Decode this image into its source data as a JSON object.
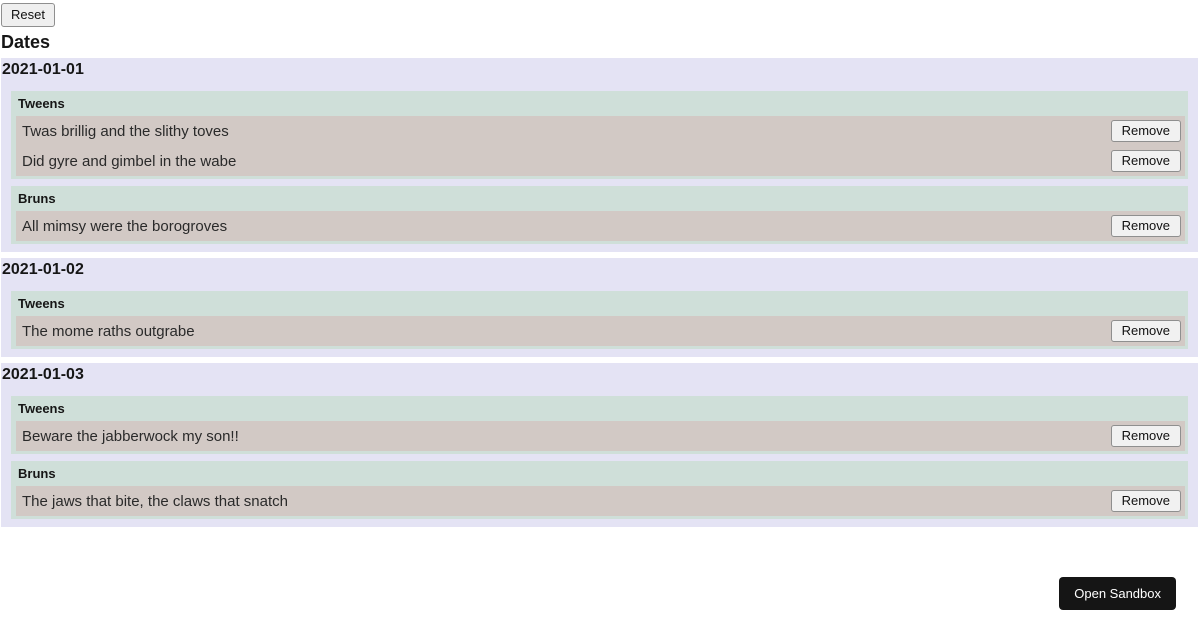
{
  "toolbar": {
    "reset_label": "Reset"
  },
  "header": {
    "title": "Dates"
  },
  "labels": {
    "remove": "Remove"
  },
  "dates": [
    {
      "date": "2021-01-01",
      "groups": [
        {
          "name": "Tweens",
          "items": [
            "Twas brillig and the slithy toves",
            "Did gyre and gimbel in the wabe"
          ]
        },
        {
          "name": "Bruns",
          "items": [
            "All mimsy were the borogroves"
          ]
        }
      ]
    },
    {
      "date": "2021-01-02",
      "groups": [
        {
          "name": "Tweens",
          "items": [
            "The mome raths outgrabe"
          ]
        }
      ]
    },
    {
      "date": "2021-01-03",
      "groups": [
        {
          "name": "Tweens",
          "items": [
            "Beware the jabberwock my son!!"
          ]
        },
        {
          "name": "Bruns",
          "items": [
            "The jaws that bite, the claws that snatch"
          ]
        }
      ]
    }
  ],
  "sandbox": {
    "label": "Open Sandbox"
  },
  "colors": {
    "section_bg": "#e4e3f4",
    "group_bg": "#cfdfd9",
    "row_bg": "#d2c9c5",
    "sandbox_button_bg": "#151515",
    "sandbox_button_text": "#ffffff"
  }
}
